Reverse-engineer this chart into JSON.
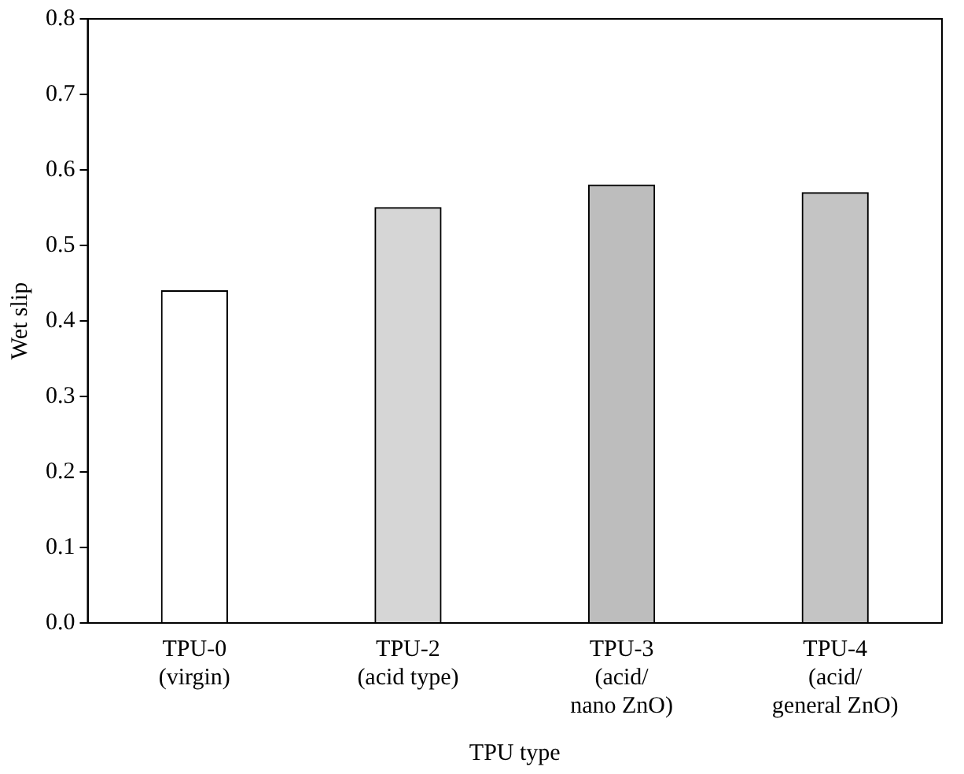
{
  "chart_data": {
    "type": "bar",
    "xlabel": "TPU type",
    "ylabel": "Wet slip",
    "categories": [
      "TPU-0\n(virgin)",
      "TPU-2\n(acid type)",
      "TPU-3\n(acid/\nnano ZnO)",
      "TPU-4\n(acid/\ngeneral ZnO)"
    ],
    "values": [
      0.44,
      0.55,
      0.58,
      0.57
    ],
    "colors": [
      "#ffffff",
      "#d6d6d6",
      "#bdbdbd",
      "#c4c4c4"
    ],
    "ylim": [
      0,
      0.8
    ],
    "yticks": [
      {
        "value": 0,
        "label": "0.0"
      },
      0.1,
      0.2,
      0.3,
      0.4,
      0.5,
      0.6,
      0.7,
      0.8
    ],
    "grid": false,
    "legend": false
  }
}
